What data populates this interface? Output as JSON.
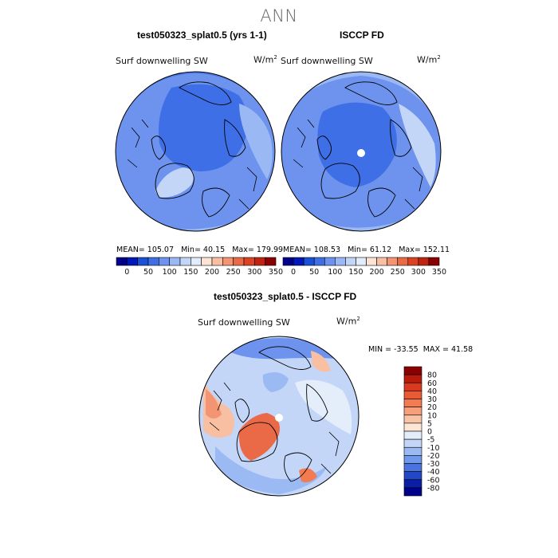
{
  "title": "ANN",
  "panels": [
    {
      "title": "test050323_splat0.5 (yrs 1-1)",
      "variable": "Surf downwelling SW",
      "units": "W/m",
      "units_exp": "2",
      "stats": {
        "mean": "MEAN= 105.07",
        "min": "Min=  40.15",
        "max": "Max= 179.99"
      }
    },
    {
      "title": "ISCCP FD",
      "variable": "Surf downwelling SW",
      "units": "W/m",
      "units_exp": "2",
      "stats": {
        "mean": "MEAN= 108.53",
        "min": "Min=  61.12",
        "max": "Max= 152.11"
      }
    }
  ],
  "abs_colorbar": {
    "ticks": [
      "0",
      "50",
      "100",
      "150",
      "200",
      "250",
      "300",
      "350"
    ],
    "colors": [
      "#00008b",
      "#0018b8",
      "#1a4fd8",
      "#3e6fe6",
      "#6d93ee",
      "#9ab8f4",
      "#c3d6f8",
      "#e2ecfb",
      "#fde4d4",
      "#f9bfa2",
      "#f39473",
      "#ea6a48",
      "#dc4324",
      "#bf2412",
      "#8b0000"
    ]
  },
  "diff_panel": {
    "title": "test050323_splat0.5 - ISCCP FD",
    "variable": "Surf downwelling SW",
    "units": "W/m",
    "units_exp": "2",
    "stats": {
      "min": "MIN = -33.55",
      "max": "MAX =  41.58"
    }
  },
  "diff_colorbar": {
    "labels": [
      "80",
      "60",
      "40",
      "30",
      "20",
      "10",
      "5",
      "0",
      "-5",
      "-10",
      "-20",
      "-30",
      "-40",
      "-60",
      "-80"
    ],
    "colors": [
      "#8b0000",
      "#b81a0c",
      "#d93a1f",
      "#ea5a34",
      "#f27b52",
      "#f69f7a",
      "#f9c3a5",
      "#fde6d6",
      "#e4eefb",
      "#c3d6f8",
      "#9bb9f3",
      "#7098ec",
      "#4a74e0",
      "#2447c7",
      "#0a1ea6",
      "#00008b"
    ]
  },
  "colors": {
    "land_outline": "#000000",
    "field_blue_dark": "#3e6fe6",
    "field_blue_mid": "#6d93ee",
    "field_blue_light": "#9ab8f4",
    "field_white": "#e2ecfb",
    "field_red_light": "#f9bfa2",
    "field_red_mid": "#f39473",
    "field_red_dark": "#ea6a48"
  }
}
